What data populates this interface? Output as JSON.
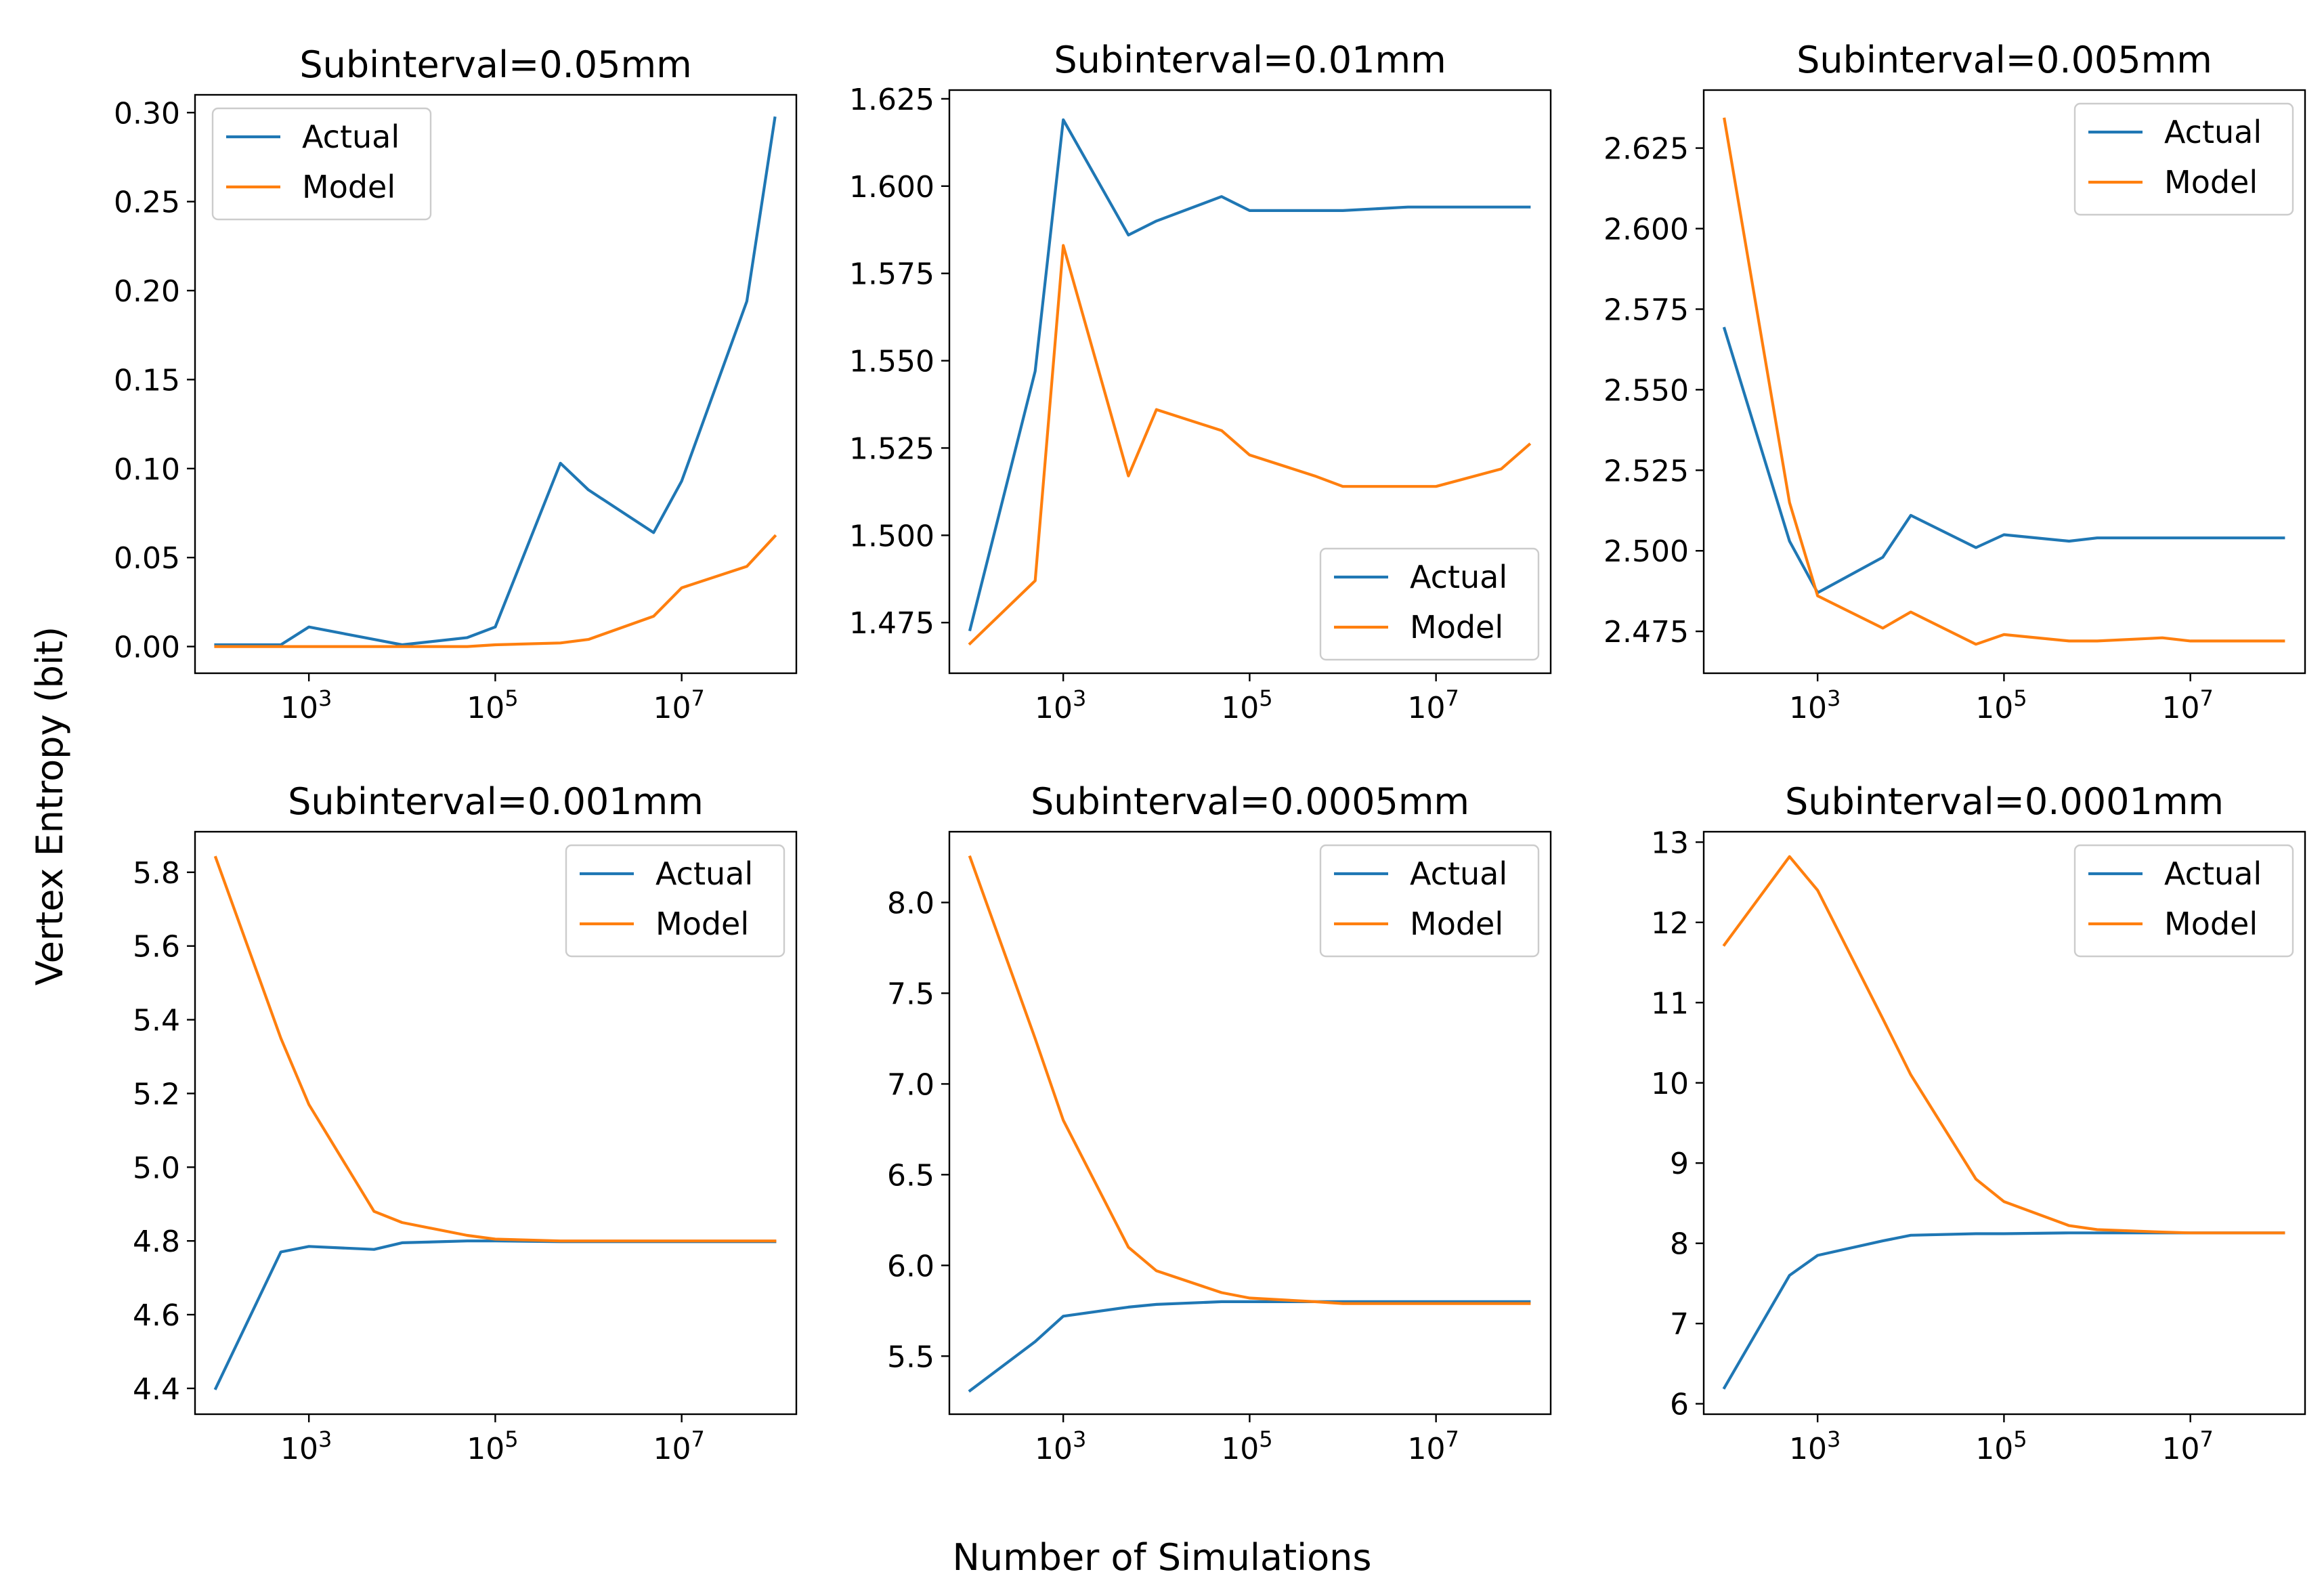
{
  "figure": {
    "xlabel": "Number of Simulations",
    "ylabel": "Vertex Entropy (bit)",
    "colors": {
      "actual": "#1f77b4",
      "model": "#ff7f0e"
    }
  },
  "chart_data": [
    {
      "type": "line",
      "title": "Subinterval=0.05mm",
      "xscale": "log",
      "x": [
        100,
        500,
        1000,
        5000,
        10000,
        50000,
        100000,
        500000,
        1000000,
        5000000,
        10000000,
        50000000,
        100000000
      ],
      "xlim": [
        60,
        170000000
      ],
      "ylim": [
        -0.015,
        0.31
      ],
      "yticks": [
        0.0,
        0.05,
        0.1,
        0.15,
        0.2,
        0.25,
        0.3
      ],
      "ytick_labels": [
        "0.00",
        "0.05",
        "0.10",
        "0.15",
        "0.20",
        "0.25",
        "0.30"
      ],
      "xticks": [
        1000,
        100000,
        10000000
      ],
      "xtick_labels": [
        {
          "base": "10",
          "exp": "3"
        },
        {
          "base": "10",
          "exp": "5"
        },
        {
          "base": "10",
          "exp": "7"
        }
      ],
      "legend": "upper left",
      "series": [
        {
          "name": "Actual",
          "values": [
            0.001,
            0.001,
            0.011,
            0.004,
            0.001,
            0.005,
            0.011,
            0.103,
            0.088,
            0.064,
            0.093,
            0.194,
            0.297
          ]
        },
        {
          "name": "Model",
          "values": [
            0.0,
            0.0,
            0.0,
            0.0,
            0.0,
            0.0,
            0.001,
            0.002,
            0.004,
            0.017,
            0.033,
            0.045,
            0.062
          ]
        }
      ]
    },
    {
      "type": "line",
      "title": "Subinterval=0.01mm",
      "xscale": "log",
      "x": [
        100,
        500,
        1000,
        5000,
        10000,
        50000,
        100000,
        500000,
        1000000,
        5000000,
        10000000,
        50000000,
        100000000
      ],
      "xlim": [
        60,
        170000000
      ],
      "ylim": [
        1.4605,
        1.6275
      ],
      "yticks": [
        1.475,
        1.5,
        1.525,
        1.55,
        1.575,
        1.6,
        1.625
      ],
      "ytick_labels": [
        "1.475",
        "1.500",
        "1.525",
        "1.550",
        "1.575",
        "1.600",
        "1.625"
      ],
      "xticks": [
        1000,
        100000,
        10000000
      ],
      "xtick_labels": [
        {
          "base": "10",
          "exp": "3"
        },
        {
          "base": "10",
          "exp": "5"
        },
        {
          "base": "10",
          "exp": "7"
        }
      ],
      "legend": "lower right",
      "series": [
        {
          "name": "Actual",
          "values": [
            1.473,
            1.547,
            1.619,
            1.586,
            1.59,
            1.597,
            1.593,
            1.593,
            1.593,
            1.594,
            1.594,
            1.594,
            1.594
          ]
        },
        {
          "name": "Model",
          "values": [
            1.469,
            1.487,
            1.583,
            1.517,
            1.536,
            1.53,
            1.523,
            1.517,
            1.514,
            1.514,
            1.514,
            1.519,
            1.526
          ]
        }
      ]
    },
    {
      "type": "line",
      "title": "Subinterval=0.005mm",
      "xscale": "log",
      "x": [
        100,
        500,
        1000,
        5000,
        10000,
        50000,
        100000,
        500000,
        1000000,
        5000000,
        10000000,
        50000000,
        100000000
      ],
      "xlim": [
        60,
        170000000
      ],
      "ylim": [
        2.462,
        2.643
      ],
      "yticks": [
        2.475,
        2.5,
        2.525,
        2.55,
        2.575,
        2.6,
        2.625
      ],
      "ytick_labels": [
        "2.475",
        "2.500",
        "2.525",
        "2.550",
        "2.575",
        "2.600",
        "2.625"
      ],
      "xticks": [
        1000,
        100000,
        10000000
      ],
      "xtick_labels": [
        {
          "base": "10",
          "exp": "3"
        },
        {
          "base": "10",
          "exp": "5"
        },
        {
          "base": "10",
          "exp": "7"
        }
      ],
      "legend": "upper right",
      "series": [
        {
          "name": "Actual",
          "values": [
            2.569,
            2.503,
            2.487,
            2.498,
            2.511,
            2.501,
            2.505,
            2.503,
            2.504,
            2.504,
            2.504,
            2.504,
            2.504
          ]
        },
        {
          "name": "Model",
          "values": [
            2.634,
            2.515,
            2.486,
            2.476,
            2.481,
            2.471,
            2.474,
            2.472,
            2.472,
            2.473,
            2.472,
            2.472,
            2.472
          ]
        }
      ]
    },
    {
      "type": "line",
      "title": "Subinterval=0.001mm",
      "xscale": "log",
      "x": [
        100,
        500,
        1000,
        5000,
        10000,
        50000,
        100000,
        500000,
        1000000,
        5000000,
        10000000,
        50000000,
        100000000
      ],
      "xlim": [
        60,
        170000000
      ],
      "ylim": [
        4.33,
        5.91
      ],
      "yticks": [
        4.4,
        4.6,
        4.8,
        5.0,
        5.2,
        5.4,
        5.6,
        5.8
      ],
      "ytick_labels": [
        "4.4",
        "4.6",
        "4.8",
        "5.0",
        "5.2",
        "5.4",
        "5.6",
        "5.8"
      ],
      "xticks": [
        1000,
        100000,
        10000000
      ],
      "xtick_labels": [
        {
          "base": "10",
          "exp": "3"
        },
        {
          "base": "10",
          "exp": "5"
        },
        {
          "base": "10",
          "exp": "7"
        }
      ],
      "legend": "upper right",
      "series": [
        {
          "name": "Actual",
          "values": [
            4.4,
            4.77,
            4.785,
            4.777,
            4.795,
            4.8,
            4.8,
            4.798,
            4.798,
            4.798,
            4.798,
            4.798,
            4.798
          ]
        },
        {
          "name": "Model",
          "values": [
            5.84,
            5.35,
            5.17,
            4.88,
            4.85,
            4.815,
            4.805,
            4.8,
            4.8,
            4.8,
            4.8,
            4.8,
            4.8
          ]
        }
      ]
    },
    {
      "type": "line",
      "title": "Subinterval=0.0005mm",
      "xscale": "log",
      "x": [
        100,
        500,
        1000,
        5000,
        10000,
        50000,
        100000,
        500000,
        1000000,
        5000000,
        10000000,
        50000000,
        100000000
      ],
      "xlim": [
        60,
        170000000
      ],
      "ylim": [
        5.18,
        8.39
      ],
      "yticks": [
        5.5,
        6.0,
        6.5,
        7.0,
        7.5,
        8.0
      ],
      "ytick_labels": [
        "5.5",
        "6.0",
        "6.5",
        "7.0",
        "7.5",
        "8.0"
      ],
      "xticks": [
        1000,
        100000,
        10000000
      ],
      "xtick_labels": [
        {
          "base": "10",
          "exp": "3"
        },
        {
          "base": "10",
          "exp": "5"
        },
        {
          "base": "10",
          "exp": "7"
        }
      ],
      "legend": "upper right",
      "series": [
        {
          "name": "Actual",
          "values": [
            5.31,
            5.58,
            5.72,
            5.77,
            5.785,
            5.8,
            5.8,
            5.8,
            5.8,
            5.8,
            5.8,
            5.8,
            5.8
          ]
        },
        {
          "name": "Model",
          "values": [
            8.25,
            7.25,
            6.8,
            6.1,
            5.97,
            5.85,
            5.82,
            5.8,
            5.79,
            5.79,
            5.79,
            5.79,
            5.79
          ]
        }
      ]
    },
    {
      "type": "line",
      "title": "Subinterval=0.0001mm",
      "xscale": "log",
      "x": [
        100,
        500,
        1000,
        5000,
        10000,
        50000,
        100000,
        500000,
        1000000,
        5000000,
        10000000,
        50000000,
        100000000
      ],
      "xlim": [
        60,
        170000000
      ],
      "ylim": [
        5.87,
        13.13
      ],
      "yticks": [
        6,
        7,
        8,
        9,
        10,
        11,
        12,
        13
      ],
      "ytick_labels": [
        "6",
        "7",
        "8",
        "9",
        "10",
        "11",
        "12",
        "13"
      ],
      "xticks": [
        1000,
        100000,
        10000000
      ],
      "xtick_labels": [
        {
          "base": "10",
          "exp": "3"
        },
        {
          "base": "10",
          "exp": "5"
        },
        {
          "base": "10",
          "exp": "7"
        }
      ],
      "legend": "upper right",
      "series": [
        {
          "name": "Actual",
          "values": [
            6.2,
            7.6,
            7.85,
            8.03,
            8.1,
            8.12,
            8.12,
            8.13,
            8.13,
            8.13,
            8.13,
            8.13,
            8.13
          ]
        },
        {
          "name": "Model",
          "values": [
            11.72,
            12.82,
            12.4,
            10.8,
            10.1,
            8.8,
            8.52,
            8.22,
            8.17,
            8.14,
            8.13,
            8.13,
            8.13
          ]
        }
      ]
    }
  ]
}
